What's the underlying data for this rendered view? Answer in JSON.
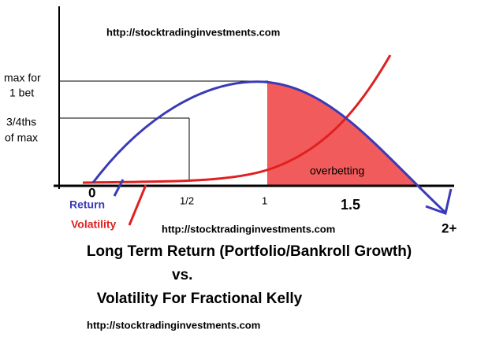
{
  "watermarks": [
    "http://stocktradinginvestments.com",
    "http://stocktradinginvestments.com",
    "http://stocktradinginvestments.com"
  ],
  "y_labels": {
    "max": [
      "max for",
      "1 bet"
    ],
    "three_quarters": [
      "3/4ths",
      "of max"
    ]
  },
  "x_labels": [
    "0",
    "1/2",
    "1",
    "1.5",
    "2+"
  ],
  "annotation": "overbetting",
  "legend": {
    "return": "Return",
    "volatility": "Volatility"
  },
  "title": [
    "Long Term Return (Portfolio/Bankroll Growth)",
    "vs.",
    "Volatility For Fractional Kelly"
  ]
}
